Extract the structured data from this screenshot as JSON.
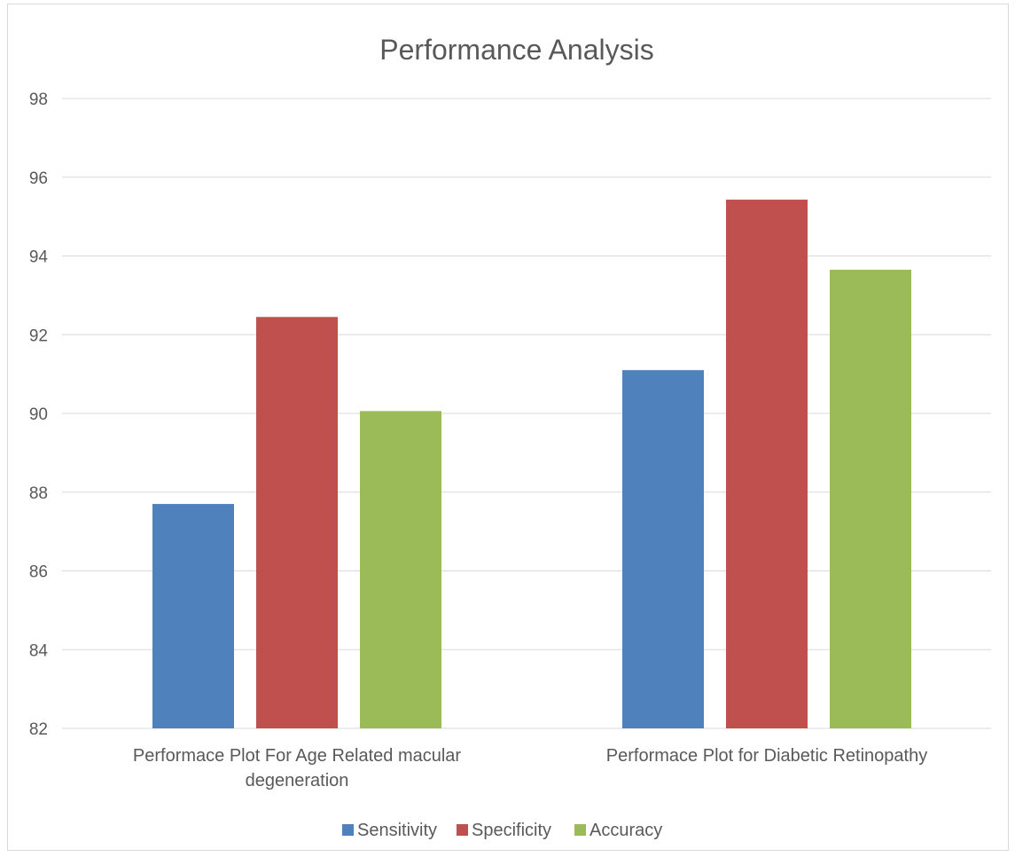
{
  "chart_data": {
    "type": "bar",
    "title": "Performance Analysis",
    "categories": [
      [
        "Performace Plot For Age Related macular",
        "degeneration"
      ],
      [
        "Performace Plot for Diabetic Retinopathy"
      ]
    ],
    "series": [
      {
        "name": "Sensitivity",
        "color": "#4f81bd",
        "values": [
          87.7,
          91.1
        ]
      },
      {
        "name": "Specificity",
        "color": "#c0504d",
        "values": [
          92.45,
          95.43
        ]
      },
      {
        "name": "Accuracy",
        "color": "#9bbb59",
        "values": [
          90.06,
          93.65
        ]
      }
    ],
    "ylim": [
      82,
      98
    ],
    "yticks": [
      "82",
      "84",
      "86",
      "88",
      "90",
      "92",
      "94",
      "96",
      "98"
    ],
    "ytick_values": [
      82,
      84,
      86,
      88,
      90,
      92,
      94,
      96,
      98
    ],
    "grid": true,
    "legend_position": "bottom",
    "gridline_color": "#d9d9d9"
  }
}
